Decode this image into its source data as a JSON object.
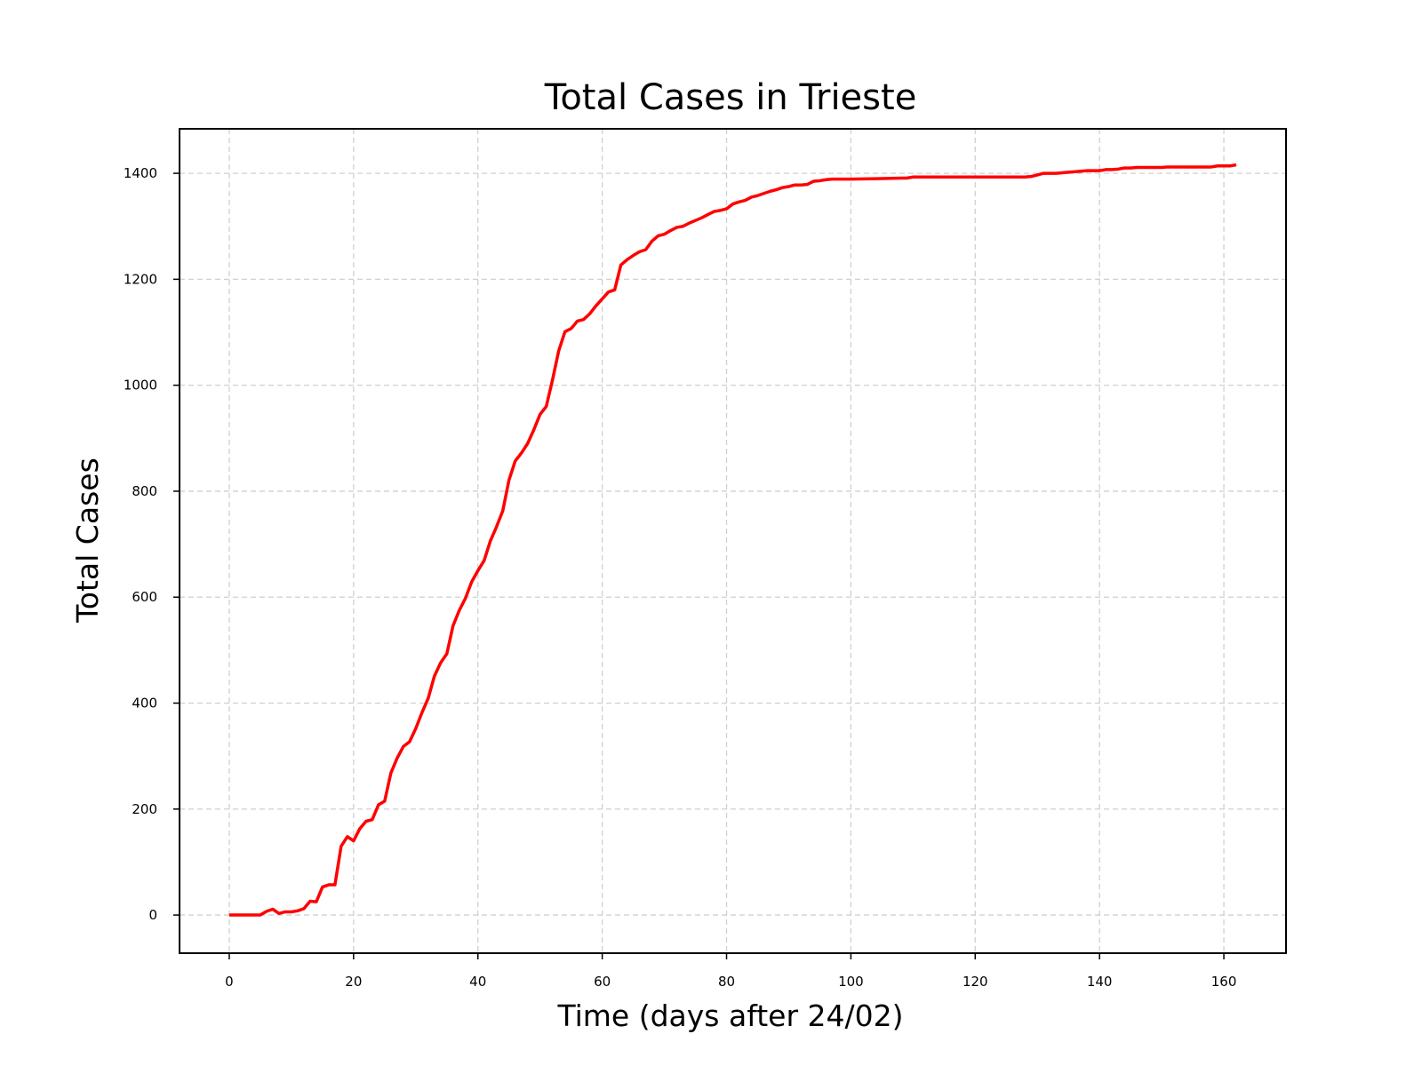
{
  "chart_data": {
    "type": "line",
    "title": "Total Cases in Trieste",
    "xlabel": "Time (days after 24/02)",
    "ylabel": "Total Cases",
    "xlim": [
      -8,
      170
    ],
    "ylim": [
      -72,
      1484
    ],
    "xticks": [
      0,
      20,
      40,
      60,
      80,
      100,
      120,
      140,
      160
    ],
    "yticks": [
      0,
      200,
      400,
      600,
      800,
      1000,
      1200,
      1400
    ],
    "grid": true,
    "grid_style": "dashed",
    "series": [
      {
        "color": "#ff0000",
        "x": [
          0,
          5,
          6,
          7,
          8,
          9,
          10,
          11,
          12,
          13,
          14,
          15,
          16,
          17,
          18,
          19,
          20,
          21,
          22,
          23,
          24,
          25,
          26,
          27,
          28,
          29,
          30,
          31,
          32,
          33,
          34,
          35,
          36,
          37,
          38,
          39,
          40,
          41,
          42,
          43,
          44,
          45,
          46,
          47,
          48,
          49,
          50,
          51,
          52,
          53,
          54,
          55,
          56,
          57,
          58,
          59,
          60,
          61,
          62,
          63,
          64,
          65,
          66,
          67,
          68,
          69,
          70,
          71,
          72,
          73,
          74,
          75,
          76,
          77,
          78,
          79,
          80,
          81,
          82,
          83,
          84,
          85,
          86,
          87,
          88,
          89,
          90,
          91,
          92,
          93,
          94,
          95,
          96,
          97,
          98,
          99,
          100,
          105,
          108,
          109,
          110,
          128,
          129,
          130,
          131,
          132,
          133,
          134,
          135,
          136,
          137,
          138,
          139,
          140,
          141,
          142,
          143,
          144,
          145,
          146,
          150,
          151,
          158,
          159,
          161,
          162
        ],
        "values": [
          0,
          0,
          7,
          11,
          3,
          6,
          6,
          8,
          12,
          26,
          25,
          53,
          57,
          57,
          130,
          148,
          140,
          163,
          177,
          180,
          208,
          215,
          268,
          296,
          318,
          327,
          352,
          382,
          409,
          451,
          476,
          493,
          546,
          575,
          598,
          629,
          650,
          669,
          706,
          733,
          763,
          821,
          857,
          872,
          890,
          916,
          945,
          960,
          1010,
          1065,
          1101,
          1107,
          1121,
          1124,
          1135,
          1150,
          1163,
          1176,
          1180,
          1227,
          1237,
          1245,
          1252,
          1256,
          1272,
          1282,
          1285,
          1292,
          1298,
          1300,
          1306,
          1311,
          1316,
          1322,
          1328,
          1330,
          1333,
          1342,
          1346,
          1349,
          1355,
          1358,
          1362,
          1366,
          1369,
          1373,
          1375,
          1378,
          1378,
          1379,
          1385,
          1386,
          1388,
          1389,
          1389,
          1389,
          1389,
          1390,
          1391,
          1391,
          1393,
          1393,
          1394,
          1397,
          1400,
          1400,
          1400,
          1401,
          1402,
          1403,
          1404,
          1405,
          1405,
          1405,
          1407,
          1407,
          1408,
          1410,
          1410,
          1411,
          1411,
          1412,
          1412,
          1414,
          1414,
          1416
        ]
      }
    ]
  }
}
